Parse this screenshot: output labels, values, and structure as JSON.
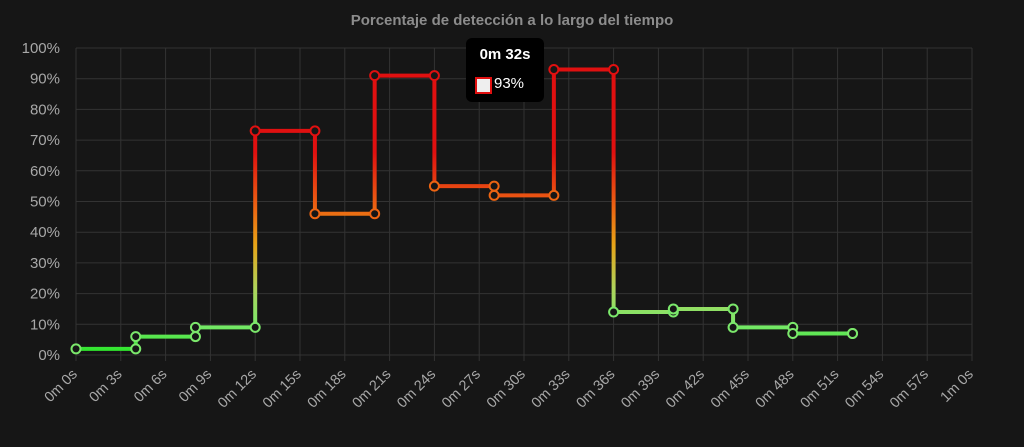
{
  "chart_data": {
    "type": "line",
    "title": "Porcentaje de detección a lo largo del tiempo",
    "xlabel": "",
    "ylabel": "",
    "step": true,
    "ylim": [
      0,
      100
    ],
    "xlim": [
      0,
      60
    ],
    "grid": true,
    "yticks": [
      "0%",
      "10%",
      "20%",
      "30%",
      "40%",
      "50%",
      "60%",
      "70%",
      "80%",
      "90%",
      "100%"
    ],
    "xticks": [
      "0m 0s",
      "0m 3s",
      "0m 6s",
      "0m 9s",
      "0m 12s",
      "0m 15s",
      "0m 18s",
      "0m 21s",
      "0m 24s",
      "0m 27s",
      "0m 30s",
      "0m 33s",
      "0m 36s",
      "0m 39s",
      "0m 42s",
      "0m 45s",
      "0m 48s",
      "0m 51s",
      "0m 54s",
      "0m 57s",
      "1m 0s"
    ],
    "series": [
      {
        "x": [
          0,
          4,
          8,
          12,
          16,
          20,
          24,
          28,
          32,
          36,
          40,
          44,
          48,
          52
        ],
        "y": [
          2,
          6,
          9,
          73,
          46,
          91,
          55,
          52,
          93,
          14,
          15,
          9,
          7,
          7
        ]
      }
    ],
    "tooltip": {
      "title": "0m 32s",
      "value": "93%"
    },
    "colors": {
      "low": "#7be86b",
      "high": "#e01010",
      "mid": "#e8a417",
      "background": "#161616",
      "grid": "#333333"
    }
  }
}
